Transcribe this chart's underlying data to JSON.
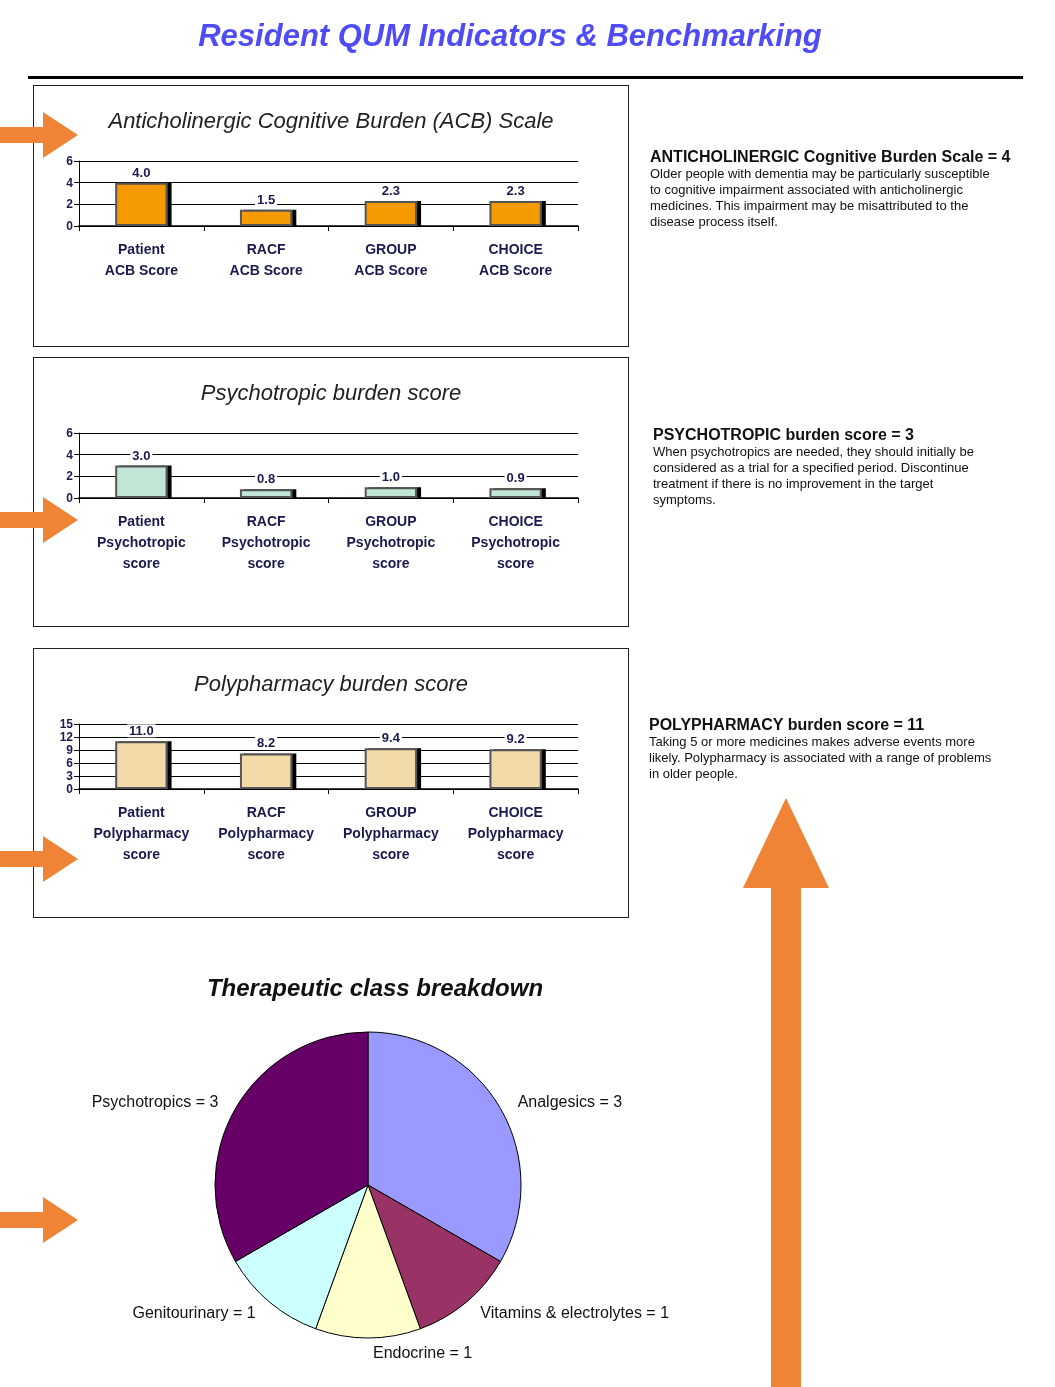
{
  "chart_data": [
    {
      "type": "other",
      "title": "Resident QUM Indicators & Benchmarking"
    },
    {
      "type": "bar",
      "title": "Anticholinergic Cognitive Burden (ACB) Scale",
      "categories": [
        "Patient\nACB Score",
        "RACF\nACB Score",
        "GROUP\nACB Score",
        "CHOICE\nACB Score"
      ],
      "values": [
        4.0,
        1.5,
        2.3,
        2.3
      ],
      "value_labels": [
        "4.0",
        "1.5",
        "2.3",
        "2.3"
      ],
      "color": "#f59a00",
      "ylim": [
        0,
        6
      ],
      "yticks": [
        0,
        2,
        4,
        6
      ],
      "grid": "y"
    },
    {
      "type": "other",
      "title": "ANTICHOLINERGIC Cognitive Burden Scale = 4",
      "annotations": [
        "Older people with dementia may be particularly susceptible to cognitive impairment associated with anticholinergic medicines. This impairment may be misattributed to the disease process itself."
      ]
    },
    {
      "type": "bar",
      "title": "Psychotropic burden score",
      "categories": [
        "Patient\nPsychotropic\nscore",
        "RACF\nPsychotropic\nscore",
        "GROUP\nPsychotropic\nscore",
        "CHOICE\nPsychotropic\nscore"
      ],
      "values": [
        3.0,
        0.8,
        1.0,
        0.9
      ],
      "value_labels": [
        "3.0",
        "0.8",
        "1.0",
        "0.9"
      ],
      "color": "#c2e6d6",
      "ylim": [
        0,
        6
      ],
      "yticks": [
        0,
        2,
        4,
        6
      ],
      "grid": "y"
    },
    {
      "type": "other",
      "title": "PSYCHOTROPIC burden score = 3",
      "annotations": [
        "When psychotropics are needed, they should initially be considered as a trial for a specified period. Discontinue treatment if there is no improvement in the target symptoms."
      ]
    },
    {
      "type": "bar",
      "title": "Polypharmacy burden score",
      "categories": [
        "Patient\nPolypharmacy\nscore",
        "RACF\nPolypharmacy\nscore",
        "GROUP\nPolypharmacy\nscore",
        "CHOICE\nPolypharmacy\nscore"
      ],
      "values": [
        11.0,
        8.2,
        9.4,
        9.2
      ],
      "value_labels": [
        "11.0",
        "8.2",
        "9.4",
        "9.2"
      ],
      "color": "#f2dba8",
      "ylim": [
        0,
        15
      ],
      "yticks": [
        0,
        3,
        6,
        9,
        12,
        15
      ],
      "grid": "y"
    },
    {
      "type": "other",
      "title": "POLYPHARMACY burden score = 11",
      "annotations": [
        "Taking 5 or more medicines makes adverse events more likely.  Polypharmacy is associated with a range of problems in older people."
      ]
    },
    {
      "type": "pie",
      "title": "Therapeutic class breakdown",
      "categories": [
        "Analgesics",
        "Vitamins & electrolytes",
        "Endocrine",
        "Genitourinary",
        "Psychotropics"
      ],
      "values": [
        3,
        1,
        1,
        1,
        3
      ],
      "colors": [
        "#9999ff",
        "#993366",
        "#ffffcc",
        "#ccffff",
        "#660066"
      ],
      "value_labels": [
        "= 3",
        "= 1",
        "= 1",
        "= 1",
        "= 3"
      ]
    }
  ]
}
